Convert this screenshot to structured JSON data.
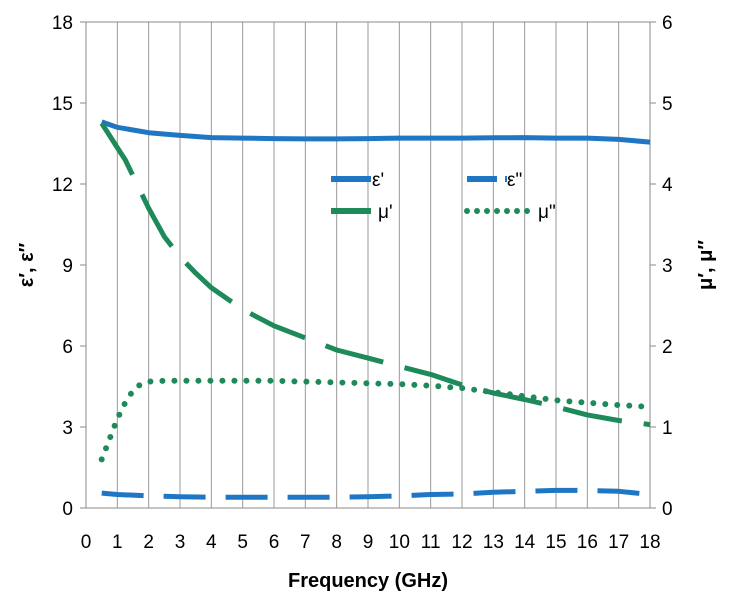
{
  "chart_data": {
    "type": "line",
    "xlabel": "Frequency (GHz)",
    "ylabel_left": "ε′, ε″",
    "ylabel_right": "μ′, μ″",
    "xlim": [
      0,
      18
    ],
    "ylim_left": [
      0,
      18
    ],
    "ylim_right": [
      0,
      6
    ],
    "x_ticks": [
      "0",
      "1",
      "2",
      "3",
      "4",
      "5",
      "6",
      "7",
      "8",
      "9",
      "10",
      "11",
      "12",
      "13",
      "14",
      "15",
      "16",
      "17",
      "18"
    ],
    "y_left_ticks": [
      "0",
      "3",
      "6",
      "9",
      "12",
      "15",
      "18"
    ],
    "y_right_ticks": [
      "0",
      "1",
      "2",
      "3",
      "4",
      "5",
      "6"
    ],
    "grid": "vertical",
    "legend_position": "inside-top-right",
    "series": [
      {
        "name": "ε'",
        "axis": "left",
        "color": "#1f77c4",
        "style": "solid",
        "x": [
          0.5,
          1,
          1.5,
          2,
          3,
          4,
          5,
          6,
          7,
          8,
          9,
          10,
          11,
          12,
          13,
          14,
          15,
          16,
          17,
          18
        ],
        "y": [
          14.3,
          14.1,
          14.0,
          13.9,
          13.8,
          13.72,
          13.7,
          13.68,
          13.67,
          13.67,
          13.68,
          13.7,
          13.7,
          13.7,
          13.71,
          13.72,
          13.7,
          13.7,
          13.65,
          13.55
        ]
      },
      {
        "name": "ε\"",
        "axis": "left",
        "color": "#1f77c4",
        "style": "dash",
        "x": [
          0.5,
          1,
          2,
          3,
          4,
          5,
          6,
          7,
          8,
          9,
          10,
          11,
          12,
          13,
          14,
          15,
          16,
          17,
          18
        ],
        "y": [
          0.55,
          0.5,
          0.45,
          0.42,
          0.4,
          0.4,
          0.4,
          0.4,
          0.4,
          0.42,
          0.45,
          0.5,
          0.52,
          0.58,
          0.62,
          0.65,
          0.65,
          0.62,
          0.5
        ]
      },
      {
        "name": "μ'",
        "axis": "right",
        "color": "#1e8a5a",
        "style": "longdash",
        "x": [
          0.5,
          0.75,
          1,
          1.25,
          1.5,
          2,
          2.5,
          3,
          3.5,
          4,
          5,
          6,
          7,
          8,
          9,
          10,
          11,
          12,
          13,
          14,
          15,
          16,
          17,
          18
        ],
        "y": [
          4.75,
          4.6,
          4.45,
          4.3,
          4.1,
          3.7,
          3.35,
          3.1,
          2.9,
          2.72,
          2.45,
          2.25,
          2.1,
          1.95,
          1.85,
          1.75,
          1.65,
          1.52,
          1.42,
          1.34,
          1.25,
          1.15,
          1.08,
          1.03
        ]
      },
      {
        "name": "μ\"",
        "axis": "right",
        "color": "#1e8a5a",
        "style": "dot",
        "x": [
          0.5,
          0.75,
          1,
          1.25,
          1.5,
          1.75,
          2,
          2.5,
          3,
          4,
          5,
          6,
          7,
          8,
          9,
          10,
          11,
          12,
          13,
          14,
          15,
          16,
          17,
          18
        ],
        "y": [
          0.6,
          0.85,
          1.1,
          1.3,
          1.45,
          1.53,
          1.56,
          1.57,
          1.57,
          1.57,
          1.57,
          1.57,
          1.56,
          1.55,
          1.54,
          1.53,
          1.51,
          1.48,
          1.43,
          1.38,
          1.33,
          1.3,
          1.27,
          1.25
        ]
      }
    ]
  }
}
